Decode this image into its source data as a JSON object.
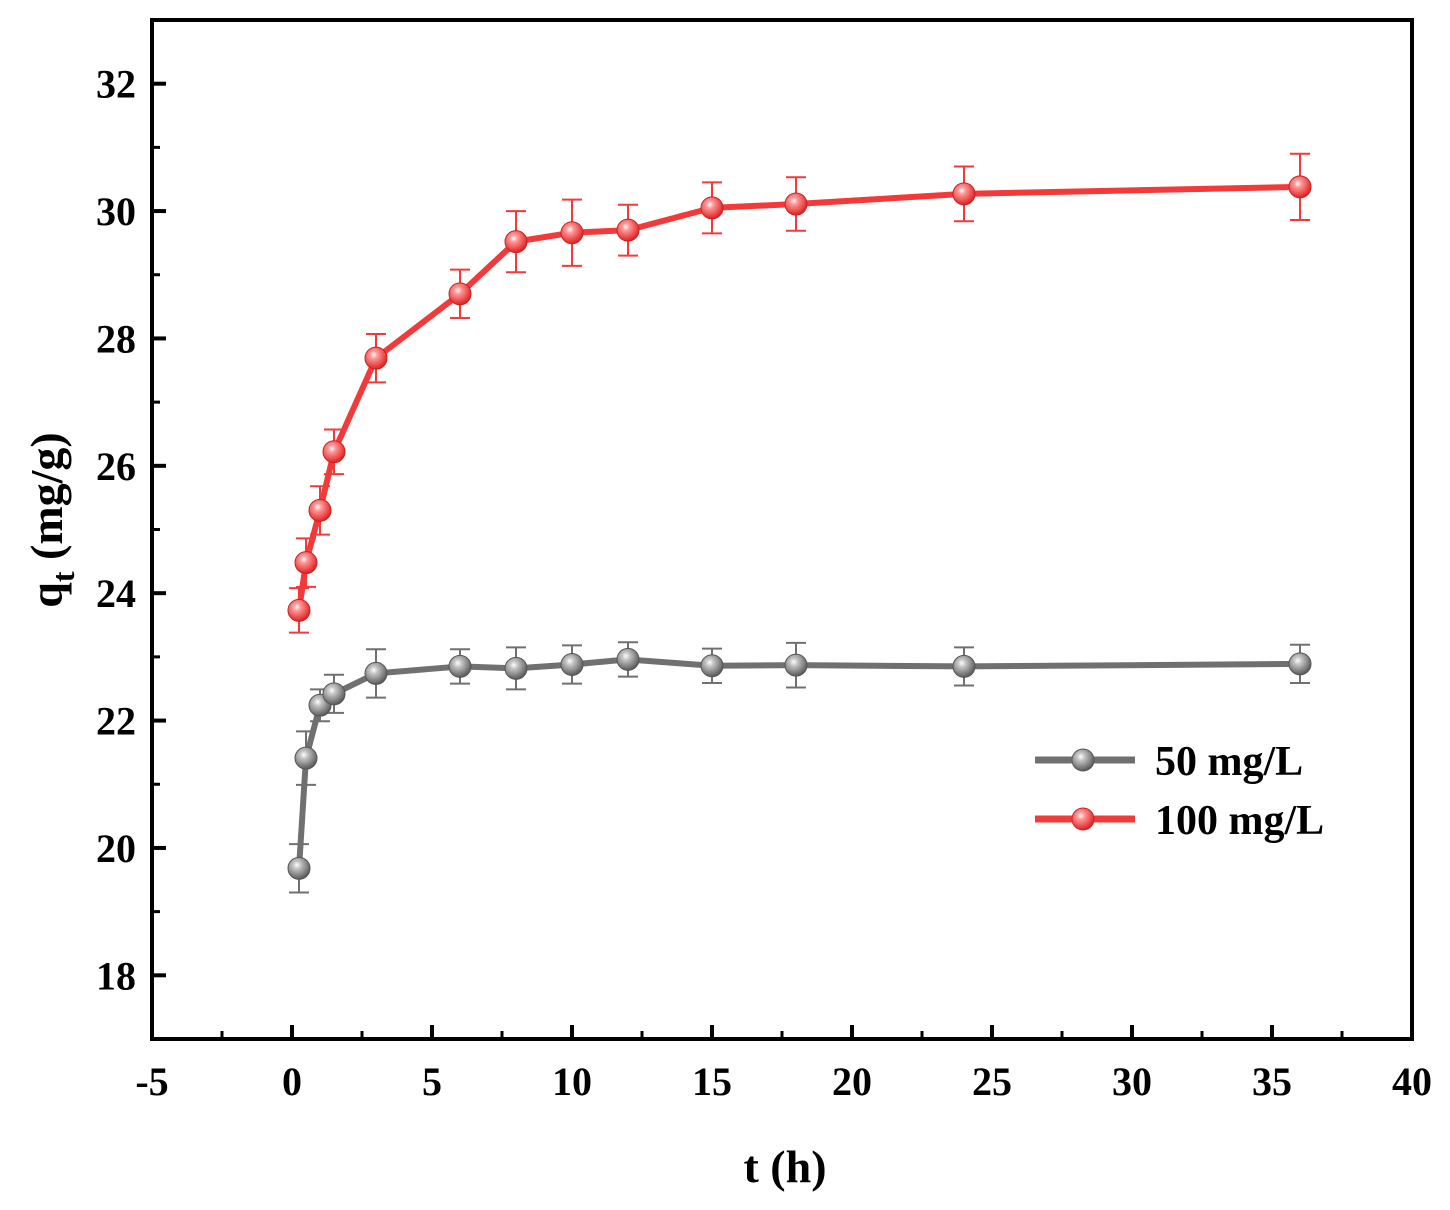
{
  "chart_data": {
    "type": "line",
    "title": "",
    "xlabel": "t (h)",
    "ylabel_main": "q",
    "ylabel_sub": "t",
    "ylabel_unit": " (mg/g)",
    "xlim": [
      -5,
      40
    ],
    "ylim": [
      17,
      33
    ],
    "xticks": [
      -5,
      0,
      5,
      10,
      15,
      20,
      25,
      30,
      35,
      40
    ],
    "yticks": [
      18,
      20,
      22,
      24,
      26,
      28,
      30,
      32
    ],
    "grid": false,
    "legend_position": "right",
    "x": [
      0.25,
      0.5,
      1,
      1.5,
      3,
      6,
      8,
      10,
      12,
      15,
      18,
      24,
      36
    ],
    "series": [
      {
        "name": "50 mg/L",
        "color": "#707070",
        "values": [
          19.68,
          21.41,
          22.24,
          22.42,
          22.74,
          22.85,
          22.82,
          22.88,
          22.96,
          22.86,
          22.87,
          22.85,
          22.89
        ],
        "errors": [
          0.38,
          0.42,
          0.25,
          0.3,
          0.38,
          0.27,
          0.33,
          0.3,
          0.27,
          0.27,
          0.35,
          0.3,
          0.3
        ]
      },
      {
        "name": "100 mg/L",
        "color": "#f23a3a",
        "values": [
          23.73,
          24.48,
          25.3,
          26.22,
          27.69,
          28.7,
          29.52,
          29.66,
          29.7,
          30.05,
          30.11,
          30.27,
          30.38
        ],
        "errors": [
          0.35,
          0.38,
          0.38,
          0.35,
          0.38,
          0.38,
          0.48,
          0.52,
          0.4,
          0.4,
          0.42,
          0.43,
          0.52
        ]
      }
    ]
  }
}
